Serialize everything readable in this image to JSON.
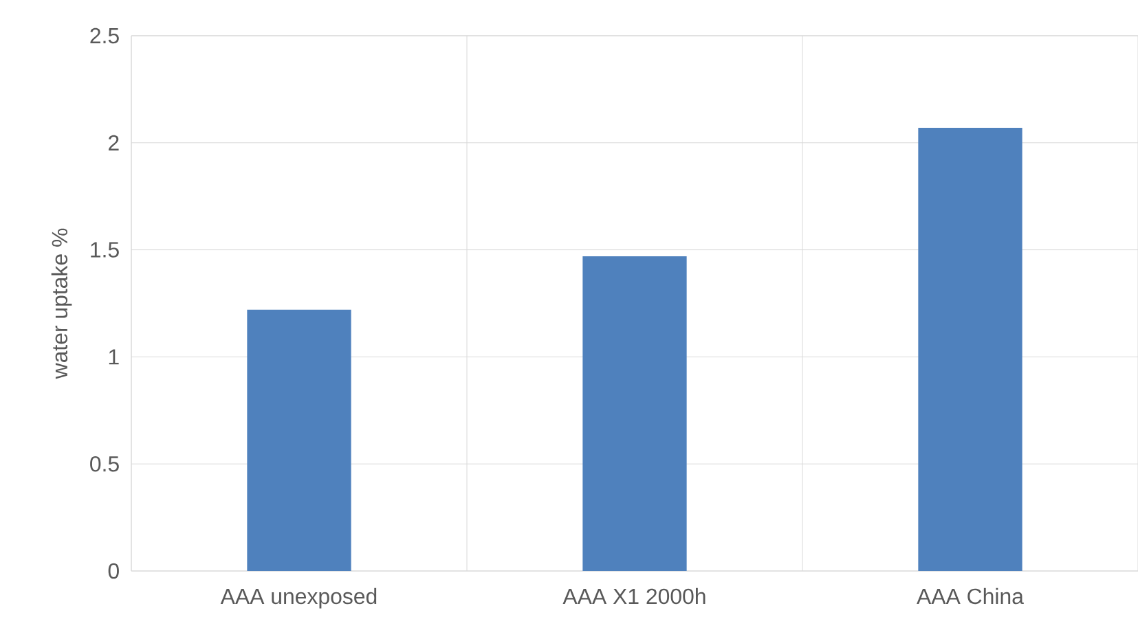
{
  "chart_data": {
    "type": "bar",
    "ylabel": "water uptake %",
    "categories": [
      "AAA unexposed",
      "AAA X1 2000h",
      "AAA China"
    ],
    "values": [
      1.22,
      1.47,
      2.07
    ],
    "color": "#4f81bd",
    "ylim": [
      0,
      2.5
    ],
    "yticks": [
      0,
      0.5,
      1,
      1.5,
      2,
      2.5
    ],
    "grid": true
  }
}
